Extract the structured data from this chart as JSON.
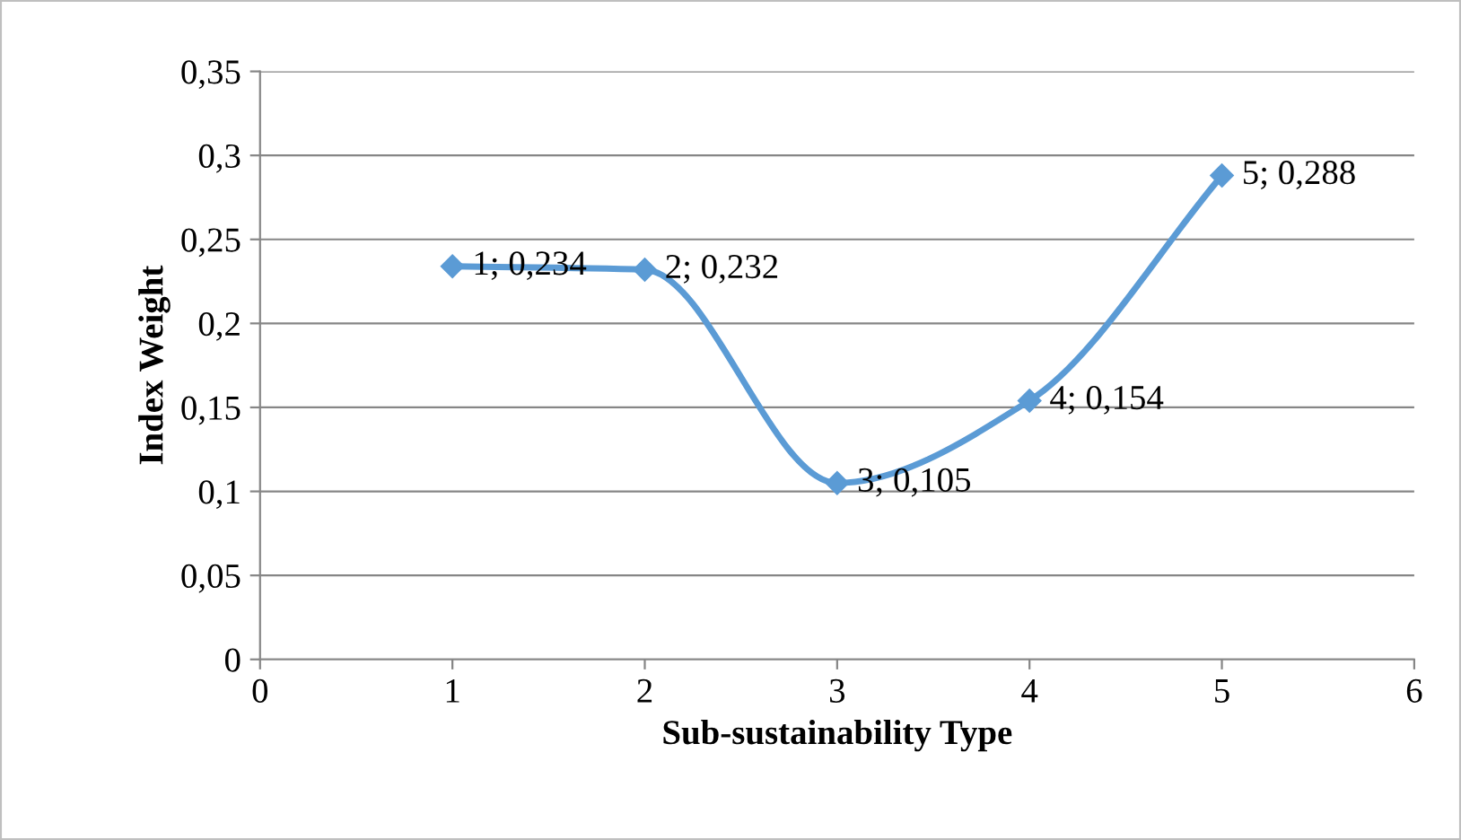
{
  "chart_data": {
    "type": "line",
    "xlabel": "Sub-sustainability Type",
    "ylabel": "Index Weight",
    "x": [
      1,
      2,
      3,
      4,
      5
    ],
    "series": [
      {
        "color": "#5b9bd5",
        "values": [
          0.234,
          0.232,
          0.105,
          0.154,
          0.288
        ],
        "value_labels": [
          "1; 0,234",
          "2; 0,232",
          "3; 0,105",
          "4; 0,154",
          "5; 0,288"
        ]
      }
    ],
    "xlim": [
      0,
      6
    ],
    "xticks": [
      0,
      1,
      2,
      3,
      4,
      5,
      6
    ],
    "ylim": [
      0,
      0.35
    ],
    "yticks": [
      0,
      {
        "value": 0.05,
        "label": "0,05"
      },
      {
        "value": 0.1,
        "label": "0,1"
      },
      {
        "value": 0.15,
        "label": "0,15"
      },
      {
        "value": 0.2,
        "label": "0,2"
      },
      {
        "value": 0.25,
        "label": "0,25"
      },
      {
        "value": 0.3,
        "label": "0,3"
      },
      {
        "value": 0.35,
        "label": "0,35"
      }
    ],
    "grid": "y",
    "marker": "diamond",
    "line_style": "solid",
    "legend": false
  }
}
